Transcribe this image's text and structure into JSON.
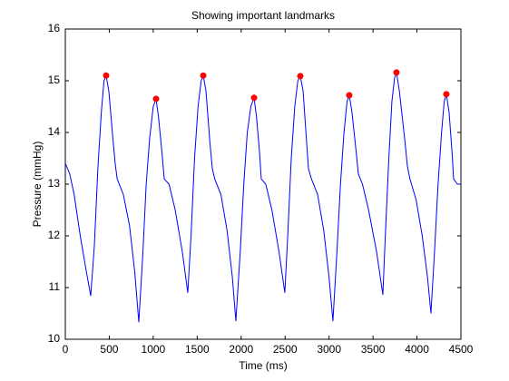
{
  "chart_data": {
    "type": "line",
    "title": "Showing important landmarks",
    "xlabel": "Time (ms)",
    "ylabel": "Pressure (mmHg)",
    "xlim": [
      0,
      4500
    ],
    "xticks": [
      0,
      500,
      1000,
      1500,
      2000,
      2500,
      3000,
      3500,
      4000,
      4500
    ],
    "ylim": [
      10,
      16
    ],
    "yticks": [
      10,
      11,
      12,
      13,
      14,
      15,
      16
    ],
    "grid": false,
    "series": [
      {
        "color": "#0000ff",
        "style": "line",
        "x": [
          0,
          50,
          100,
          170,
          240,
          289,
          330,
          370,
          410,
          440,
          464,
          495,
          540,
          567,
          590,
          660,
          730,
          790,
          836,
          880,
          920,
          960,
          1000,
          1032,
          1060,
          1100,
          1125,
          1180,
          1250,
          1330,
          1393,
          1430,
          1470,
          1510,
          1545,
          1569,
          1600,
          1645,
          1672,
          1700,
          1770,
          1840,
          1900,
          1940,
          1990,
          2030,
          2070,
          2110,
          2147,
          2175,
          2210,
          2229,
          2280,
          2350,
          2430,
          2497,
          2530,
          2570,
          2610,
          2645,
          2673,
          2705,
          2745,
          2766,
          2800,
          2870,
          2940,
          3000,
          3044,
          3090,
          3130,
          3170,
          3205,
          3230,
          3260,
          3310,
          3333,
          3380,
          3450,
          3540,
          3612,
          3640,
          3680,
          3715,
          3745,
          3767,
          3800,
          3865,
          3891,
          3920,
          3990,
          4060,
          4120,
          4159,
          4200,
          4240,
          4280,
          4310,
          4334,
          4365,
          4400,
          4417,
          4460,
          4500
        ],
        "values": [
          13.4,
          13.2,
          12.8,
          12.0,
          11.3,
          10.84,
          11.8,
          13.3,
          14.4,
          15.0,
          15.1,
          14.8,
          13.9,
          13.4,
          13.1,
          12.8,
          12.2,
          11.3,
          10.33,
          11.6,
          13.0,
          13.9,
          14.5,
          14.65,
          14.3,
          13.6,
          13.1,
          13.0,
          12.5,
          11.7,
          10.9,
          12.0,
          13.5,
          14.5,
          15.0,
          15.1,
          14.8,
          13.8,
          13.3,
          13.1,
          12.8,
          12.1,
          11.2,
          10.35,
          11.7,
          13.0,
          14.0,
          14.5,
          14.67,
          14.3,
          13.6,
          13.1,
          13.0,
          12.5,
          11.7,
          10.9,
          12.0,
          13.5,
          14.5,
          15.0,
          15.09,
          14.8,
          13.8,
          13.3,
          13.1,
          12.8,
          12.1,
          11.2,
          10.35,
          11.7,
          13.0,
          14.0,
          14.6,
          14.72,
          14.4,
          13.6,
          13.2,
          13.0,
          12.5,
          11.7,
          10.86,
          12.0,
          13.5,
          14.6,
          15.05,
          15.16,
          14.8,
          13.8,
          13.35,
          13.1,
          12.7,
          12.0,
          11.2,
          10.5,
          11.7,
          13.0,
          14.0,
          14.6,
          14.74,
          14.4,
          13.6,
          13.1,
          13.0,
          13.0
        ]
      },
      {
        "color": "#ff0000",
        "style": "markers",
        "x": [
          464,
          1032,
          1569,
          2147,
          2673,
          3230,
          3767,
          4334
        ],
        "values": [
          15.1,
          14.65,
          15.1,
          14.67,
          15.09,
          14.72,
          15.16,
          14.74
        ]
      }
    ]
  }
}
